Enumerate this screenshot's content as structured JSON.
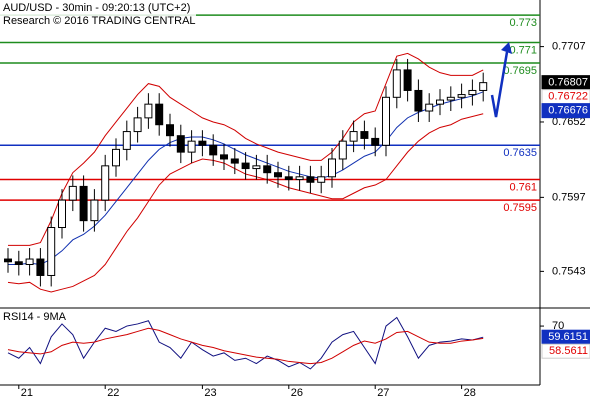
{
  "chart_data": [
    {
      "type": "candlestick",
      "title": "AUD/USD - 30min - 09:20:13 (UTC+2)",
      "subtitle": "Research © 2016 TRADING CENTRAL",
      "categories": [
        null,
        "21",
        null,
        null,
        null,
        null,
        null,
        null,
        null,
        "22",
        null,
        null,
        null,
        null,
        null,
        null,
        null,
        null,
        "23",
        null,
        null,
        null,
        null,
        null,
        null,
        null,
        "26",
        null,
        null,
        null,
        null,
        null,
        null,
        null,
        "27",
        null,
        null,
        null,
        null,
        null,
        null,
        null,
        "28",
        null,
        null
      ],
      "open": [
        0.7552,
        0.755,
        0.7548,
        0.7552,
        0.754,
        0.7575,
        0.7595,
        0.7605,
        0.758,
        0.7595,
        0.762,
        0.7632,
        0.7645,
        0.7655,
        0.7665,
        0.765,
        0.7642,
        0.763,
        0.7638,
        0.7635,
        0.7628,
        0.7625,
        0.7622,
        0.7618,
        0.762,
        0.7615,
        0.7612,
        0.761,
        0.7612,
        0.7608,
        0.7612,
        0.7625,
        0.7638,
        0.7645,
        0.764,
        0.7635,
        0.767,
        0.769,
        0.7675,
        0.766,
        0.7665,
        0.7668,
        0.767,
        0.7672,
        0.7675
      ],
      "high": [
        0.756,
        0.7558,
        0.756,
        0.756,
        0.7583,
        0.7603,
        0.7613,
        0.7613,
        0.7603,
        0.7628,
        0.764,
        0.7653,
        0.7663,
        0.7673,
        0.7673,
        0.7658,
        0.765,
        0.7646,
        0.7646,
        0.7643,
        0.7636,
        0.7633,
        0.763,
        0.7628,
        0.7628,
        0.7623,
        0.762,
        0.762,
        0.762,
        0.762,
        0.7633,
        0.7646,
        0.7653,
        0.7653,
        0.7648,
        0.7678,
        0.7698,
        0.7698,
        0.7683,
        0.7673,
        0.7676,
        0.7678,
        0.768,
        0.7683,
        0.7688
      ],
      "low": [
        0.7542,
        0.754,
        0.754,
        0.7532,
        0.7532,
        0.7567,
        0.7587,
        0.7572,
        0.7572,
        0.7587,
        0.7612,
        0.7624,
        0.7637,
        0.7647,
        0.7642,
        0.7634,
        0.7622,
        0.7622,
        0.7627,
        0.762,
        0.7617,
        0.7614,
        0.761,
        0.761,
        0.7607,
        0.7604,
        0.7602,
        0.7602,
        0.76,
        0.76,
        0.7604,
        0.7617,
        0.763,
        0.7632,
        0.7627,
        0.7627,
        0.7662,
        0.7667,
        0.7652,
        0.7652,
        0.7657,
        0.766,
        0.7662,
        0.7664,
        0.7667
      ],
      "close": [
        0.755,
        0.7548,
        0.7552,
        0.754,
        0.7575,
        0.7595,
        0.7605,
        0.758,
        0.7595,
        0.762,
        0.7632,
        0.7645,
        0.7655,
        0.7665,
        0.765,
        0.7642,
        0.763,
        0.7638,
        0.7635,
        0.7628,
        0.7625,
        0.7622,
        0.7618,
        0.762,
        0.7615,
        0.7612,
        0.761,
        0.7612,
        0.7608,
        0.7612,
        0.7625,
        0.7638,
        0.7645,
        0.764,
        0.7635,
        0.767,
        0.769,
        0.7675,
        0.766,
        0.7665,
        0.7668,
        0.767,
        0.7672,
        0.7675,
        0.76807
      ],
      "overlays": [
        {
          "color": "#d00000",
          "values": [
            0.7562,
            0.7562,
            0.7562,
            0.7564,
            0.758,
            0.76,
            0.7615,
            0.7622,
            0.763,
            0.7642,
            0.7652,
            0.7662,
            0.7672,
            0.768,
            0.7678,
            0.767,
            0.7665,
            0.766,
            0.7655,
            0.7652,
            0.765,
            0.7646,
            0.764,
            0.7636,
            0.7633,
            0.763,
            0.7628,
            0.7626,
            0.7624,
            0.7624,
            0.763,
            0.764,
            0.7652,
            0.7658,
            0.766,
            0.768,
            0.77,
            0.7702,
            0.7698,
            0.7692,
            0.7688,
            0.7686,
            0.7686,
            0.7686,
            0.769
          ]
        },
        {
          "color": "#1030b0",
          "values": [
            0.7548,
            0.7548,
            0.7549,
            0.7548,
            0.7552,
            0.7558,
            0.7566,
            0.757,
            0.7576,
            0.7584,
            0.7594,
            0.7604,
            0.7614,
            0.7624,
            0.7632,
            0.7637,
            0.764,
            0.7641,
            0.7641,
            0.7639,
            0.7636,
            0.7632,
            0.7628,
            0.7625,
            0.7622,
            0.7619,
            0.7616,
            0.7614,
            0.7612,
            0.7611,
            0.7613,
            0.7617,
            0.7622,
            0.7627,
            0.763,
            0.7638,
            0.7648,
            0.7655,
            0.7659,
            0.7662,
            0.7665,
            0.7667,
            0.7669,
            0.7671,
            0.7674
          ]
        },
        {
          "color": "#d00000",
          "values": [
            0.7535,
            0.7534,
            0.7535,
            0.753,
            0.7528,
            0.753,
            0.7532,
            0.7536,
            0.754,
            0.7548,
            0.756,
            0.7572,
            0.7582,
            0.7594,
            0.7606,
            0.7614,
            0.7618,
            0.7622,
            0.7625,
            0.7624,
            0.7622,
            0.7618,
            0.7614,
            0.7612,
            0.761,
            0.7607,
            0.7604,
            0.7602,
            0.76,
            0.7598,
            0.7596,
            0.7596,
            0.76,
            0.7604,
            0.7606,
            0.761,
            0.762,
            0.763,
            0.7638,
            0.7644,
            0.7648,
            0.765,
            0.7654,
            0.7656,
            0.7658
          ]
        }
      ],
      "levels": [
        {
          "value": 0.773,
          "color": "#1e8c1e"
        },
        {
          "value": 0.771,
          "color": "#1e8c1e"
        },
        {
          "value": 0.7695,
          "color": "#1e8c1e"
        },
        {
          "value": 0.7635,
          "color": "#1030c0"
        },
        {
          "value": 0.761,
          "color": "#e00000"
        },
        {
          "value": 0.7595,
          "color": "#e00000"
        }
      ],
      "price_tags": [
        {
          "value": 0.76807,
          "color": "#000000",
          "text_color": "#ffffff"
        },
        {
          "value": 0.76722,
          "color": "#ffffff",
          "text_color": "#e00000"
        },
        {
          "value": 0.76676,
          "color": "#1030c0",
          "text_color": "#ffffff"
        }
      ],
      "ylim": [
        0.7517,
        0.7741
      ],
      "yticks": [
        0.7543,
        0.7597,
        0.7652,
        0.7707
      ]
    },
    {
      "type": "line",
      "title": "RSI14 - 9MA",
      "series": [
        {
          "color": "#101080",
          "values": [
            45,
            40,
            50,
            35,
            60,
            72,
            62,
            40,
            55,
            68,
            65,
            70,
            72,
            75,
            55,
            50,
            40,
            55,
            48,
            42,
            45,
            38,
            40,
            35,
            42,
            38,
            32,
            36,
            30,
            40,
            55,
            62,
            65,
            50,
            35,
            70,
            78,
            60,
            40,
            52,
            55,
            56,
            58,
            57,
            59.6151
          ]
        },
        {
          "color": "#d00000",
          "values": [
            48,
            46,
            45,
            44,
            46,
            52,
            55,
            54,
            55,
            58,
            60,
            62,
            65,
            68,
            66,
            62,
            58,
            55,
            52,
            50,
            47,
            45,
            43,
            41,
            40,
            39,
            37,
            36,
            35,
            36,
            40,
            46,
            52,
            56,
            54,
            58,
            64,
            65,
            60,
            55,
            54,
            54,
            56,
            57,
            58.5611
          ]
        }
      ],
      "price_tags": [
        {
          "value": 59.6151,
          "color": "#1030c0",
          "text_color": "#ffffff"
        },
        {
          "value": 58.5611,
          "color": "#ffffff",
          "text_color": "#e00000"
        }
      ],
      "ylim": [
        15,
        85
      ],
      "yticks": [
        70
      ]
    }
  ]
}
